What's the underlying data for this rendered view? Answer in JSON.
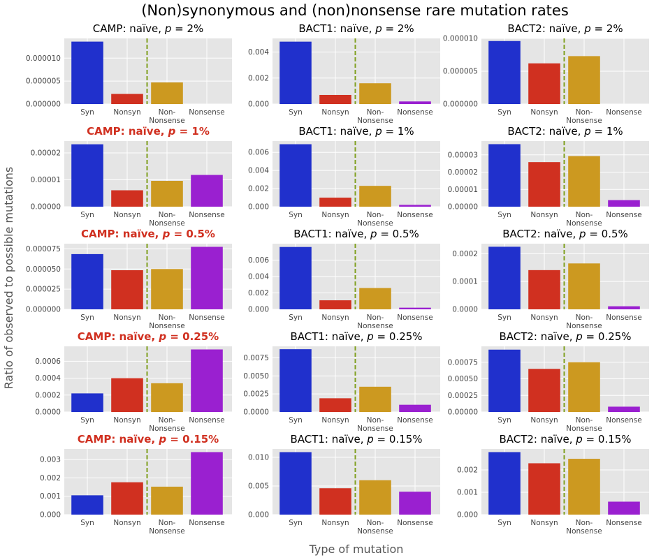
{
  "figure": {
    "title": "(Non)synonymous and (non)nonsense rare mutation rates",
    "xlabel": "Type of mutation",
    "ylabel": "Ratio of observed to possible mutations"
  },
  "colors": {
    "syn": "#2030cc",
    "nonsyn": "#d03020",
    "non_nonsense": "#cc9920",
    "nonsense": "#9a20d0",
    "divider": "#80a020",
    "highlight_title": "#d03020",
    "panel_bg": "#e5e5e5",
    "grid": "#ffffff"
  },
  "chart_data": [
    {
      "type": "bar",
      "title": "CAMP: naïve, p = 2%",
      "title_parts": [
        "CAMP: naïve, ",
        "p",
        " = 2%"
      ],
      "highlight": false,
      "categories": [
        "Syn",
        "Nonsyn",
        "Non-\nNonsense",
        "Nonsense"
      ],
      "values": [
        1.36e-05,
        2.2e-06,
        4.7e-06,
        0
      ],
      "ylim": [
        0,
        1.43e-05
      ],
      "yticks": [
        0,
        5e-06,
        1e-05
      ],
      "ytick_labels": [
        "0.000000",
        "0.000005",
        "0.000010"
      ]
    },
    {
      "type": "bar",
      "title": "BACT1: naïve, p = 2%",
      "title_parts": [
        "BACT1: naïve, ",
        "p",
        " = 2%"
      ],
      "highlight": false,
      "categories": [
        "Syn",
        "Nonsyn",
        "Non-\nNonsense",
        "Nonsense"
      ],
      "values": [
        0.0048,
        0.0007,
        0.0016,
        0.0002
      ],
      "ylim": [
        0,
        0.00505
      ],
      "yticks": [
        0,
        0.002,
        0.004
      ],
      "ytick_labels": [
        "0.000",
        "0.002",
        "0.004"
      ]
    },
    {
      "type": "bar",
      "title": "BACT2: naïve, p = 2%",
      "title_parts": [
        "BACT2: naïve, ",
        "p",
        " = 2%"
      ],
      "highlight": false,
      "categories": [
        "Syn",
        "Nonsyn",
        "Non-\nNonsense",
        "Nonsense"
      ],
      "values": [
        9.6e-06,
        6.2e-06,
        7.3e-06,
        0
      ],
      "ylim": [
        0,
        1e-05
      ],
      "yticks": [
        0,
        5e-06,
        1e-05
      ],
      "ytick_labels": [
        "0.000000",
        "0.000005",
        "0.000010"
      ]
    },
    {
      "type": "bar",
      "title": "CAMP: naïve, p = 1%",
      "title_parts": [
        "CAMP: naïve, ",
        "p",
        " = 1%"
      ],
      "highlight": true,
      "categories": [
        "Syn",
        "Nonsyn",
        "Non-\nNonsense",
        "Nonsense"
      ],
      "values": [
        2.32e-05,
        6.1e-06,
        9.6e-06,
        1.18e-05
      ],
      "ylim": [
        0,
        2.44e-05
      ],
      "yticks": [
        0,
        1e-05,
        2e-05
      ],
      "ytick_labels": [
        "0.00000",
        "0.00001",
        "0.00002"
      ]
    },
    {
      "type": "bar",
      "title": "BACT1: naïve, p = 1%",
      "title_parts": [
        "BACT1: naïve, ",
        "p",
        " = 1%"
      ],
      "highlight": false,
      "categories": [
        "Syn",
        "Nonsyn",
        "Non-\nNonsense",
        "Nonsense"
      ],
      "values": [
        0.0069,
        0.001,
        0.0023,
        0.0002
      ],
      "ylim": [
        0,
        0.00725
      ],
      "yticks": [
        0,
        0.002,
        0.004,
        0.006
      ],
      "ytick_labels": [
        "0.000",
        "0.002",
        "0.004",
        "0.006"
      ]
    },
    {
      "type": "bar",
      "title": "BACT2: naïve, p = 1%",
      "title_parts": [
        "BACT2: naïve, ",
        "p",
        " = 1%"
      ],
      "highlight": false,
      "categories": [
        "Syn",
        "Nonsyn",
        "Non-\nNonsense",
        "Nonsense"
      ],
      "values": [
        3.62e-05,
        2.58e-05,
        2.93e-05,
        3.8e-06
      ],
      "ylim": [
        0,
        3.8e-05
      ],
      "yticks": [
        0,
        1e-05,
        2e-05,
        3e-05
      ],
      "ytick_labels": [
        "0.00000",
        "0.00001",
        "0.00002",
        "0.00003"
      ]
    },
    {
      "type": "bar",
      "title": "CAMP: naïve, p = 0.5%",
      "title_parts": [
        "CAMP: naïve, ",
        "p",
        " = 0.5%"
      ],
      "highlight": true,
      "categories": [
        "Syn",
        "Nonsyn",
        "Non-\nNonsense",
        "Nonsense"
      ],
      "values": [
        6.85e-05,
        4.85e-05,
        5e-05,
        7.75e-05
      ],
      "ylim": [
        0,
        8.14e-05
      ],
      "yticks": [
        0,
        2.5e-05,
        5e-05,
        7.5e-05
      ],
      "ytick_labels": [
        "0.000000",
        "0.000025",
        "0.000050",
        "0.000075"
      ]
    },
    {
      "type": "bar",
      "title": "BACT1: naïve, p = 0.5%",
      "title_parts": [
        "BACT1: naïve, ",
        "p",
        " = 0.5%"
      ],
      "highlight": false,
      "categories": [
        "Syn",
        "Nonsyn",
        "Non-\nNonsense",
        "Nonsense"
      ],
      "values": [
        0.0076,
        0.0011,
        0.0026,
        0.0002
      ],
      "ylim": [
        0,
        0.008
      ],
      "yticks": [
        0,
        0.002,
        0.004,
        0.006
      ],
      "ytick_labels": [
        "0.000",
        "0.002",
        "0.004",
        "0.006"
      ]
    },
    {
      "type": "bar",
      "title": "BACT2: naïve, p = 0.5%",
      "title_parts": [
        "BACT2: naïve, ",
        "p",
        " = 0.5%"
      ],
      "highlight": false,
      "categories": [
        "Syn",
        "Nonsyn",
        "Non-\nNonsense",
        "Nonsense"
      ],
      "values": [
        0.000225,
        0.000141,
        0.000165,
        1.1e-05
      ],
      "ylim": [
        0,
        0.000236
      ],
      "yticks": [
        0,
        0.0001,
        0.0002
      ],
      "ytick_labels": [
        "0.0000",
        "0.0001",
        "0.0002"
      ]
    },
    {
      "type": "bar",
      "title": "CAMP: naïve, p = 0.25%",
      "title_parts": [
        "CAMP: naïve, ",
        "p",
        " = 0.25%"
      ],
      "highlight": true,
      "categories": [
        "Syn",
        "Nonsyn",
        "Non-\nNonsense",
        "Nonsense"
      ],
      "values": [
        0.00022,
        0.0004,
        0.00034,
        0.00074
      ],
      "ylim": [
        0,
        0.000777
      ],
      "yticks": [
        0,
        0.0002,
        0.0004,
        0.0006
      ],
      "ytick_labels": [
        "0.0000",
        "0.0002",
        "0.0004",
        "0.0006"
      ]
    },
    {
      "type": "bar",
      "title": "BACT1: naïve, p = 0.25%",
      "title_parts": [
        "BACT1: naïve, ",
        "p",
        " = 0.25%"
      ],
      "highlight": false,
      "categories": [
        "Syn",
        "Nonsyn",
        "Non-\nNonsense",
        "Nonsense"
      ],
      "values": [
        0.0087,
        0.0019,
        0.0035,
        0.001
      ],
      "ylim": [
        0,
        0.0091
      ],
      "yticks": [
        0,
        0.0025,
        0.005,
        0.0075
      ],
      "ytick_labels": [
        "0.0000",
        "0.0025",
        "0.0050",
        "0.0075"
      ]
    },
    {
      "type": "bar",
      "title": "BACT2: naïve, p = 0.25%",
      "title_parts": [
        "BACT2: naïve, ",
        "p",
        " = 0.25%"
      ],
      "highlight": false,
      "categories": [
        "Syn",
        "Nonsyn",
        "Non-\nNonsense",
        "Nonsense"
      ],
      "values": [
        0.00094,
        0.00065,
        0.00075,
        8e-05
      ],
      "ylim": [
        0,
        0.00099
      ],
      "yticks": [
        0,
        0.00025,
        0.0005,
        0.00075
      ],
      "ytick_labels": [
        "0.00000",
        "0.00025",
        "0.00050",
        "0.00075"
      ]
    },
    {
      "type": "bar",
      "title": "CAMP: naïve, p = 0.15%",
      "title_parts": [
        "CAMP: naïve, ",
        "p",
        " = 0.15%"
      ],
      "highlight": true,
      "categories": [
        "Syn",
        "Nonsyn",
        "Non-\nNonsense",
        "Nonsense"
      ],
      "values": [
        0.00105,
        0.00176,
        0.00152,
        0.0034
      ],
      "ylim": [
        0,
        0.00357
      ],
      "yticks": [
        0,
        0.001,
        0.002,
        0.003
      ],
      "ytick_labels": [
        "0.000",
        "0.001",
        "0.002",
        "0.003"
      ]
    },
    {
      "type": "bar",
      "title": "BACT1: naïve, p = 0.15%",
      "title_parts": [
        "BACT1: naïve, ",
        "p",
        " = 0.15%"
      ],
      "highlight": false,
      "categories": [
        "Syn",
        "Nonsyn",
        "Non-\nNonsense",
        "Nonsense"
      ],
      "values": [
        0.0109,
        0.0046,
        0.006,
        0.004
      ],
      "ylim": [
        0,
        0.01145
      ],
      "yticks": [
        0,
        0.005,
        0.01
      ],
      "ytick_labels": [
        "0.000",
        "0.005",
        "0.010"
      ]
    },
    {
      "type": "bar",
      "title": "BACT2: naïve, p = 0.15%",
      "title_parts": [
        "BACT2: naïve, ",
        "p",
        " = 0.15%"
      ],
      "highlight": false,
      "categories": [
        "Syn",
        "Nonsyn",
        "Non-\nNonsense",
        "Nonsense"
      ],
      "values": [
        0.0028,
        0.0023,
        0.0025,
        0.00058
      ],
      "ylim": [
        0,
        0.00294
      ],
      "yticks": [
        0,
        0.001,
        0.002
      ],
      "ytick_labels": [
        "0.000",
        "0.001",
        "0.002"
      ]
    }
  ]
}
